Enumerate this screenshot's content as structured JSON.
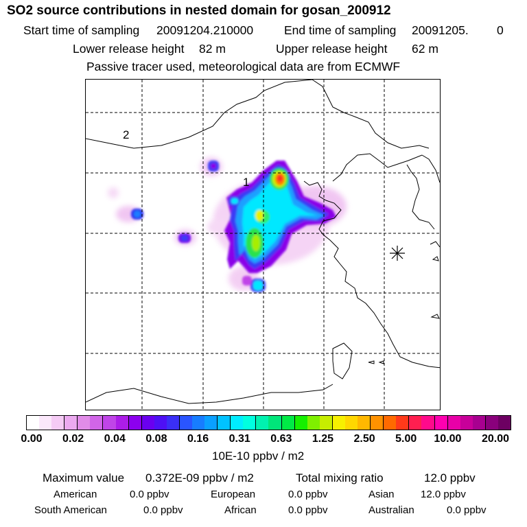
{
  "title": "SO2 source contributions in nested domain for gosan_200912",
  "header": {
    "start_label": "Start time of sampling",
    "start_value": "20091204.210000",
    "end_label": "End time of sampling",
    "end_value": "20091205.",
    "end_suffix": "0",
    "lower_label": "Lower release height",
    "lower_value": "82 m",
    "upper_label": "Upper release height",
    "upper_value": "62 m",
    "tracer_note": "Passive tracer used, meteorological data are from ECMWF"
  },
  "map": {
    "labels": {
      "domain_2": "2",
      "domain_1": "1"
    },
    "marker_icon": "receptor-asterisk-icon",
    "colors": {
      "land_line": "#000000",
      "grid": "#000000"
    }
  },
  "colorbar": {
    "colors": [
      "#ffffff",
      "#fbe8fb",
      "#f5cbf5",
      "#ecaaf0",
      "#e18ce8",
      "#d165e8",
      "#c045e8",
      "#ac1de8",
      "#8c00ef",
      "#6a00f0",
      "#4e10f5",
      "#3a2ff7",
      "#2a55ff",
      "#177dff",
      "#0aa0ff",
      "#00c2ff",
      "#00ecff",
      "#00ffe0",
      "#00f2b0",
      "#00e67a",
      "#00ea46",
      "#15f000",
      "#7ff000",
      "#c7ee00",
      "#f7f000",
      "#ffd700",
      "#ffb800",
      "#ff9200",
      "#ff6a00",
      "#ff3a1a",
      "#ff1f50",
      "#ff0a8c",
      "#ff00b0",
      "#e800a8",
      "#c8009a",
      "#a80090",
      "#8a007c",
      "#6d0062"
    ],
    "ticks": [
      "0.00",
      "0.02",
      "0.04",
      "0.08",
      "0.16",
      "0.31",
      "0.63",
      "1.25",
      "2.50",
      "5.00",
      "10.00",
      "20.00"
    ],
    "unit": "10E-10 ppbv / m2"
  },
  "summary": {
    "max_label": "Maximum value",
    "max_value": "0.372E-09 ppbv / m2",
    "total_label": "Total mixing ratio",
    "total_value": "12.0 ppbv",
    "regions": [
      {
        "name": "American",
        "value": "0.0 ppbv"
      },
      {
        "name": "European",
        "value": "0.0 ppbv"
      },
      {
        "name": "Asian",
        "value": "12.0 ppbv"
      },
      {
        "name": "South American",
        "value": "0.0 ppbv"
      },
      {
        "name": "African",
        "value": "0.0 ppbv"
      },
      {
        "name": "Australian",
        "value": "0.0 ppbv"
      }
    ]
  }
}
